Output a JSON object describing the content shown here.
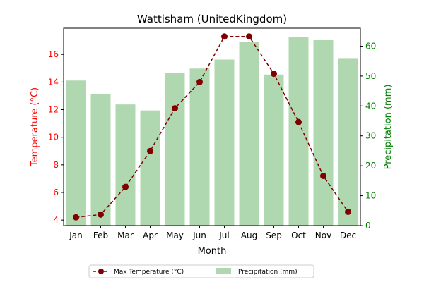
{
  "chart_data": {
    "type": "bar+line",
    "title": "Wattisham (UnitedKingdom)",
    "xlabel": "Month",
    "ylabel_left": "Temperature (°C)",
    "ylabel_right": "Precipitation (mm)",
    "categories": [
      "Jan",
      "Feb",
      "Mar",
      "Apr",
      "May",
      "Jun",
      "Jul",
      "Aug",
      "Sep",
      "Oct",
      "Nov",
      "Dec"
    ],
    "ylim_left": [
      3.6,
      17.9
    ],
    "ylim_right": [
      0,
      66.0
    ],
    "yticks_left": [
      4,
      6,
      8,
      10,
      12,
      14,
      16
    ],
    "yticks_right": [
      0,
      10,
      20,
      30,
      40,
      50,
      60
    ],
    "grid": false,
    "legend_position": "bottom-center",
    "series": [
      {
        "name": "Max Temperature (°C)",
        "type": "line",
        "axis": "left",
        "color": "#800000",
        "values": [
          4.2,
          4.4,
          6.4,
          9.0,
          12.1,
          14.0,
          17.3,
          17.3,
          14.6,
          11.1,
          7.2,
          4.6
        ]
      },
      {
        "name": "Precipitation (mm)",
        "type": "bar",
        "axis": "right",
        "color": "#b0d8b0",
        "values": [
          48.5,
          44.0,
          40.5,
          38.5,
          51.0,
          52.5,
          55.5,
          61.5,
          50.5,
          63.0,
          62.0,
          56.0
        ]
      }
    ],
    "colors": {
      "left_axis": "#ff0000",
      "right_axis": "#008000"
    }
  }
}
